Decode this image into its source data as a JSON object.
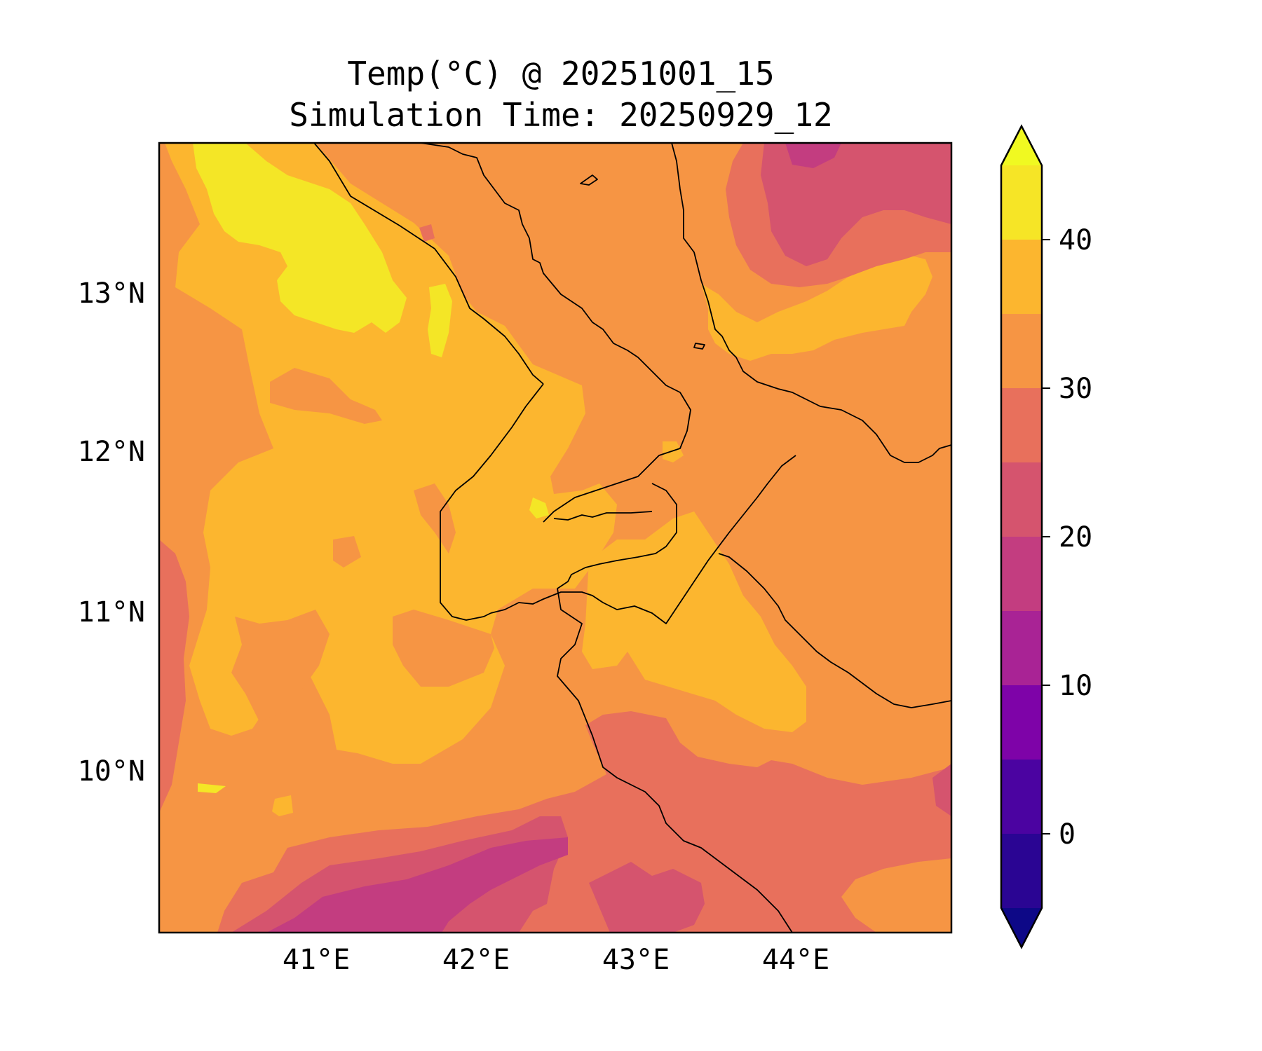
{
  "map": {
    "title_line1": "Temp(°C) @ 20251001_15",
    "title_line2": "Simulation Time: 20250929_12",
    "lat_ticks": [
      "13°N",
      "12°N",
      "11°N",
      "10°N"
    ],
    "lon_ticks": [
      "41°E",
      "42°E",
      "43°E",
      "44°E"
    ]
  },
  "colorbar": {
    "units": "°C",
    "extend": "both",
    "levels": [
      -5,
      0,
      5,
      10,
      15,
      20,
      25,
      30,
      35,
      40,
      45
    ],
    "tick_labels": [
      "0",
      "10",
      "20",
      "30",
      "40"
    ],
    "colors": [
      "#0d0887",
      "#2a0593",
      "#4b03a1",
      "#7e03a8",
      "#a92395",
      "#c33d80",
      "#d5546e",
      "#e8705c",
      "#f69544",
      "#fcb62f",
      "#f6e526",
      "#f0f921"
    ]
  }
}
